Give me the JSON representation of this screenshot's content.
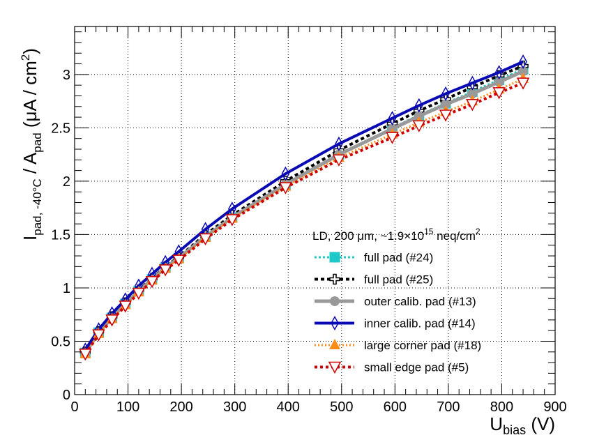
{
  "chart_data": {
    "type": "line",
    "xlabel": {
      "main": "U",
      "sub": "bias",
      "unit": " (V)"
    },
    "ylabel": {
      "main": "I",
      "sub": "pad, -40°C",
      "mid": " / A",
      "sub2": "pad",
      "unit": "  (μA / cm",
      "sup": "2",
      "close": ")"
    },
    "xlim": [
      0,
      900
    ],
    "ylim": [
      0,
      3.45
    ],
    "xticks": [
      0,
      100,
      200,
      300,
      400,
      500,
      600,
      700,
      800,
      900
    ],
    "xtick_labels": [
      "0",
      "100",
      "200",
      "300",
      "400",
      "500",
      "600",
      "700",
      "800",
      "900"
    ],
    "yticks": [
      0,
      0.5,
      1,
      1.5,
      2,
      2.5,
      3
    ],
    "ytick_labels": [
      "0",
      "0.5",
      "1",
      "1.5",
      "2",
      "2.5",
      "3"
    ],
    "grid": true,
    "legend_title": {
      "pre": "LD, 200 μm, ~1.9×10",
      "sup": "15",
      "post": " neq/cm",
      "sup2": "2"
    },
    "x": [
      20,
      45,
      70,
      95,
      120,
      145,
      170,
      195,
      245,
      295,
      395,
      495,
      595,
      645,
      695,
      745,
      795,
      840
    ],
    "series": [
      {
        "name": "full pad (#24)",
        "color": "#1fc8c8",
        "dash": "3,3",
        "width": 3,
        "marker": "square",
        "values": [
          0.39,
          0.58,
          0.72,
          0.85,
          0.97,
          1.08,
          1.19,
          1.28,
          1.48,
          1.66,
          1.97,
          2.25,
          2.5,
          2.62,
          2.73,
          2.84,
          2.95,
          3.05
        ]
      },
      {
        "name": "full pad (#25)",
        "color": "#000000",
        "dash": "5,4",
        "width": 4,
        "marker": "cross",
        "values": [
          0.4,
          0.59,
          0.73,
          0.86,
          0.98,
          1.09,
          1.2,
          1.29,
          1.5,
          1.68,
          2.0,
          2.29,
          2.54,
          2.66,
          2.77,
          2.88,
          2.99,
          3.08
        ]
      },
      {
        "name": "outer calib. pad (#13)",
        "color": "#999999",
        "dash": "",
        "width": 5,
        "marker": "circle",
        "values": [
          0.39,
          0.58,
          0.72,
          0.85,
          0.97,
          1.08,
          1.19,
          1.28,
          1.48,
          1.66,
          1.97,
          2.25,
          2.49,
          2.61,
          2.72,
          2.82,
          2.93,
          3.03
        ]
      },
      {
        "name": "inner calib. pad (#14)",
        "color": "#0a0ab4",
        "dash": "",
        "width": 4,
        "marker": "diamond",
        "values": [
          0.42,
          0.61,
          0.76,
          0.89,
          1.02,
          1.13,
          1.24,
          1.34,
          1.55,
          1.74,
          2.07,
          2.35,
          2.59,
          2.71,
          2.82,
          2.92,
          3.02,
          3.12
        ]
      },
      {
        "name": "large corner pad (#18)",
        "color": "#ff8c1a",
        "dash": "2,3",
        "width": 3,
        "marker": "triangle-up",
        "values": [
          0.38,
          0.57,
          0.71,
          0.84,
          0.96,
          1.07,
          1.18,
          1.27,
          1.47,
          1.65,
          1.95,
          2.22,
          2.44,
          2.55,
          2.65,
          2.75,
          2.86,
          2.96
        ]
      },
      {
        "name": "small edge pad (#5)",
        "color": "#cc0000",
        "dash": "4,4",
        "width": 4,
        "marker": "triangle-down",
        "values": [
          0.38,
          0.56,
          0.7,
          0.83,
          0.95,
          1.06,
          1.17,
          1.26,
          1.46,
          1.64,
          1.94,
          2.2,
          2.41,
          2.52,
          2.62,
          2.72,
          2.83,
          2.92
        ]
      }
    ]
  }
}
